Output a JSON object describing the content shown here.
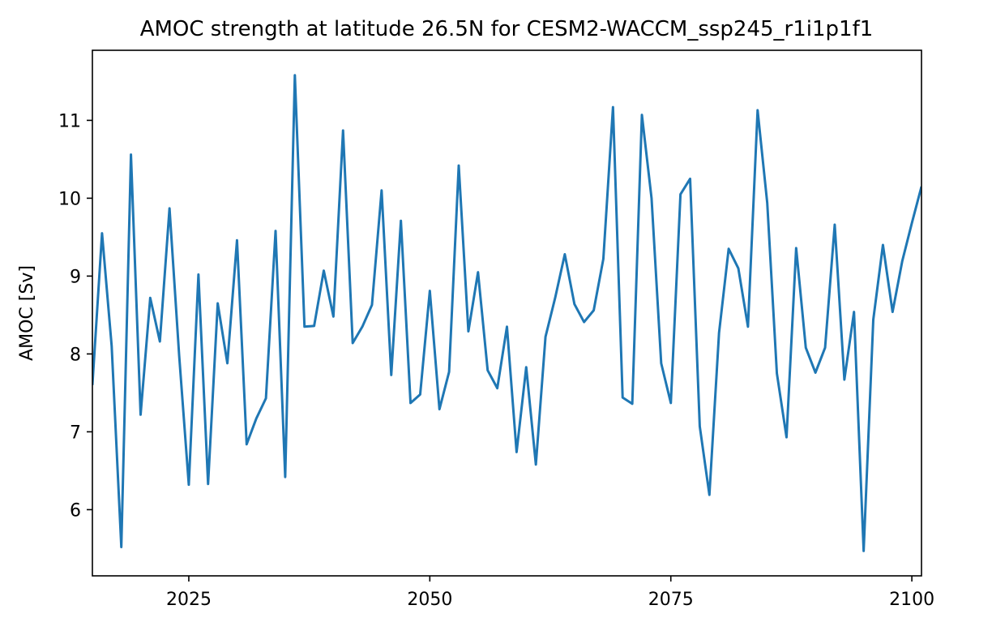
{
  "chart_data": {
    "type": "line",
    "title": "AMOC strength at latitude 26.5N for CESM2-WACCM_ssp245_r1i1p1f1",
    "xlabel": "",
    "ylabel": "AMOC [Sv]",
    "xlim": [
      2015.0,
      2101.0
    ],
    "ylim": [
      5.15,
      11.9
    ],
    "xticks": [
      2025,
      2050,
      2075,
      2100
    ],
    "yticks": [
      6,
      7,
      8,
      9,
      10,
      11
    ],
    "grid": false,
    "line_color": "#1f77b4",
    "series": [
      {
        "x": [
          2015,
          2016,
          2017,
          2018,
          2019,
          2020,
          2021,
          2022,
          2023,
          2024,
          2025,
          2026,
          2027,
          2028,
          2029,
          2030,
          2031,
          2032,
          2033,
          2034,
          2035,
          2036,
          2037,
          2038,
          2039,
          2040,
          2041,
          2042,
          2043,
          2044,
          2045,
          2046,
          2047,
          2048,
          2049,
          2050,
          2051,
          2052,
          2053,
          2054,
          2055,
          2056,
          2057,
          2058,
          2059,
          2060,
          2061,
          2062,
          2063,
          2064,
          2065,
          2066,
          2067,
          2068,
          2069,
          2070,
          2071,
          2072,
          2073,
          2074,
          2075,
          2076,
          2077,
          2078,
          2079,
          2080,
          2081,
          2082,
          2083,
          2084,
          2085,
          2086,
          2087,
          2088,
          2089,
          2090,
          2091,
          2092,
          2093,
          2094,
          2095,
          2096,
          2097,
          2098,
          2099,
          2100,
          2101
        ],
        "y": [
          7.6,
          9.55,
          8.1,
          5.52,
          10.56,
          7.22,
          8.72,
          8.16,
          9.87,
          7.98,
          6.32,
          9.02,
          6.33,
          8.65,
          7.88,
          9.46,
          6.84,
          7.17,
          7.43,
          9.58,
          6.42,
          11.58,
          8.35,
          8.36,
          9.07,
          8.48,
          10.87,
          8.14,
          8.35,
          8.63,
          10.1,
          7.73,
          9.71,
          7.37,
          7.48,
          8.81,
          7.29,
          7.77,
          10.42,
          8.29,
          9.05,
          7.79,
          7.56,
          8.35,
          6.74,
          7.83,
          6.58,
          8.22,
          8.72,
          9.28,
          8.64,
          8.41,
          8.56,
          9.22,
          11.17,
          7.44,
          7.36,
          11.07,
          10.0,
          7.88,
          7.37,
          10.05,
          10.25,
          7.07,
          6.19,
          8.27,
          9.35,
          9.1,
          8.35,
          11.13,
          9.94,
          7.75,
          6.93,
          9.36,
          8.08,
          7.76,
          8.08,
          9.66,
          7.67,
          8.54,
          5.47,
          8.44,
          9.4,
          8.54,
          9.19,
          9.68,
          10.15
        ]
      }
    ]
  }
}
